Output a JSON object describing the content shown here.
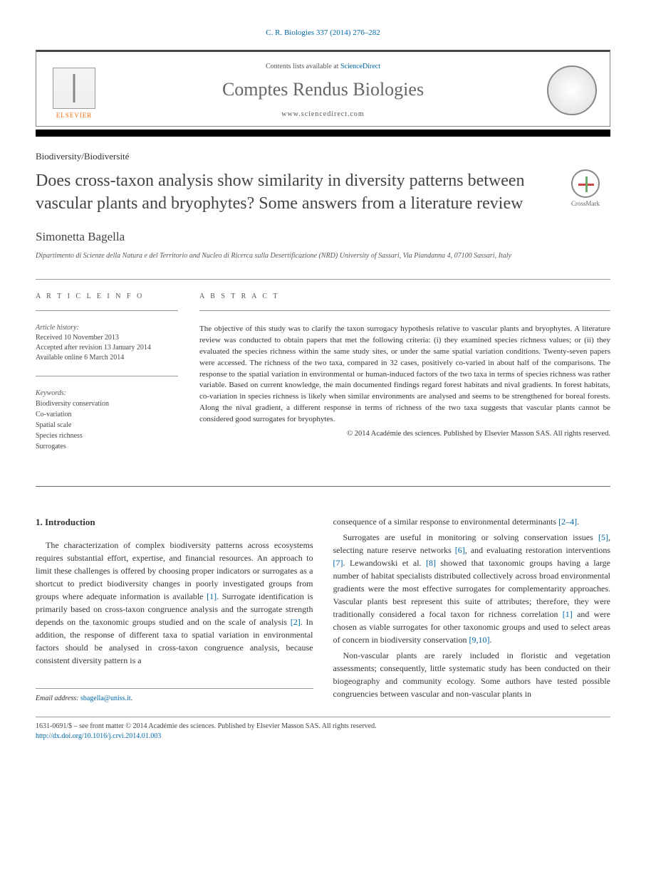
{
  "citation": "C. R. Biologies 337 (2014) 276–282",
  "contents_prefix": "Contents lists available at ",
  "contents_link": "ScienceDirect",
  "journal_name": "Comptes Rendus Biologies",
  "journal_url": "www.sciencedirect.com",
  "elsevier": "ELSEVIER",
  "section_label": "Biodiversity/Biodiversité",
  "article_title": "Does cross-taxon analysis show similarity in diversity patterns between vascular plants and bryophytes? Some answers from a literature review",
  "crossmark": "CrossMark",
  "author": "Simonetta Bagella",
  "affiliation": "Dipartimento di Scienze della Natura e del Territorio and Nucleo di Ricerca sulla Desertificazione (NRD) University of Sassari, Via Piandanna 4, 07100 Sassari, Italy",
  "info_heading": "A R T I C L E   I N F O",
  "abstract_heading": "A B S T R A C T",
  "history_label": "Article history:",
  "history": {
    "received": "Received 10 November 2013",
    "accepted": "Accepted after revision 13 January 2014",
    "online": "Available online 6 March 2014"
  },
  "keywords_label": "Keywords:",
  "keywords": [
    "Biodiversity conservation",
    "Co-variation",
    "Spatial scale",
    "Species richness",
    "Surrogates"
  ],
  "abstract": "The objective of this study was to clarify the taxon surrogacy hypothesis relative to vascular plants and bryophytes. A literature review was conducted to obtain papers that met the following criteria: (i) they examined species richness values; or (ii) they evaluated the species richness within the same study sites, or under the same spatial variation conditions. Twenty-seven papers were accessed. The richness of the two taxa, compared in 32 cases, positively co-varied in about half of the comparisons. The response to the spatial variation in environmental or human-induced factors of the two taxa in terms of species richness was rather variable. Based on current knowledge, the main documented findings regard forest habitats and nival gradients. In forest habitats, co-variation in species richness is likely when similar environments are analysed and seems to be strengthened for boreal forests. Along the nival gradient, a different response in terms of richness of the two taxa suggests that vascular plants cannot be considered good surrogates for bryophytes.",
  "copyright": "© 2014 Académie des sciences. Published by Elsevier Masson SAS. All rights reserved.",
  "intro_heading": "1. Introduction",
  "col1": {
    "p1a": "The characterization of complex biodiversity patterns across ecosystems requires substantial effort, expertise, and financial resources. An approach to limit these challenges is offered by choosing proper indicators or surrogates as a shortcut to predict biodiversity changes in poorly investigated groups from groups where adequate information is available ",
    "r1": "[1]",
    "p1b": ". Surrogate identification is primarily based on cross-taxon congruence analysis and the surrogate strength depends on the taxonomic groups studied and on the scale of analysis ",
    "r2": "[2]",
    "p1c": ". In addition, the response of different taxa to spatial variation in environmental factors should be analysed in cross-taxon congruence analysis, because consistent diversity pattern is a"
  },
  "col2": {
    "p1a": "consequence of a similar response to environmental determinants ",
    "r1": "[2–4]",
    "p1b": ".",
    "p2a": "Surrogates are useful in monitoring or solving conservation issues ",
    "r2": "[5]",
    "p2b": ", selecting nature reserve networks ",
    "r3": "[6]",
    "p2c": ", and evaluating restoration interventions ",
    "r4": "[7]",
    "p2d": ". Lewandowski et al. ",
    "r5": "[8]",
    "p2e": " showed that taxonomic groups having a large number of habitat specialists distributed collectively across broad environmental gradients were the most effective surrogates for complementarity approaches. Vascular plants best represent this suite of attributes; therefore, they were traditionally considered a focal taxon for richness correlation ",
    "r6": "[1]",
    "p2f": " and were chosen as viable surrogates for other taxonomic groups and used to select areas of concern in biodiversity conservation ",
    "r7": "[9,10]",
    "p2g": ".",
    "p3": "Non-vascular plants are rarely included in floristic and vegetation assessments; consequently, little systematic study has been conducted on their biogeography and community ecology. Some authors have tested possible congruencies between vascular and non-vascular plants in"
  },
  "email_label": "Email address: ",
  "email": "sbagella@uniss.it",
  "footer_line": "1631-0691/$ – see front matter © 2014 Académie des sciences. Published by Elsevier Masson SAS. All rights reserved.",
  "doi": "http://dx.doi.org/10.1016/j.crvi.2014.01.003"
}
